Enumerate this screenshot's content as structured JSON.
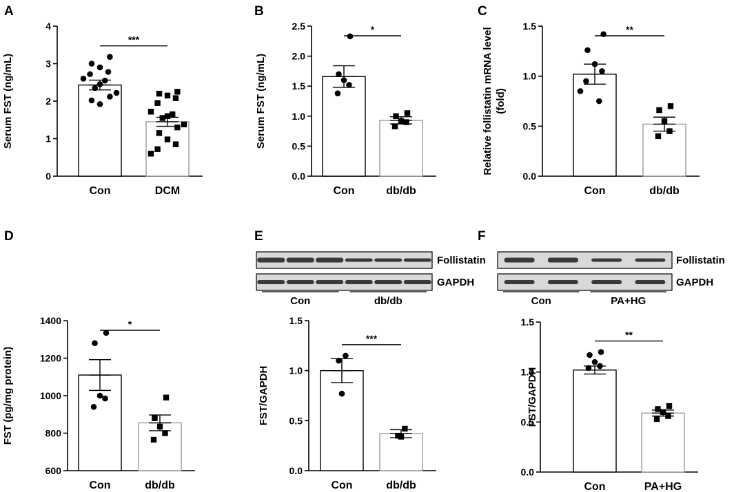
{
  "colors": {
    "ink": "#000000",
    "bar_con_edge": "#000000",
    "bar_trt_edge": "#9a9a9a",
    "band": "#3a3a3a",
    "blot_bg": "#d9d9d9"
  },
  "chart_data": [
    {
      "panel": "A",
      "type": "bar",
      "ylabel": "Serum FST (ng/mL)",
      "ylim": [
        0,
        4
      ],
      "yticks": [
        0,
        1,
        2,
        3,
        4
      ],
      "tick_decimals": 0,
      "categories": [
        "Con",
        "DCM"
      ],
      "means": [
        2.43,
        1.45
      ],
      "sem": [
        0.13,
        0.12
      ],
      "points": [
        [
          3.18,
          3.0,
          2.9,
          2.78,
          2.72,
          2.6,
          2.55,
          2.45,
          2.35,
          2.22,
          2.12,
          2.02,
          1.92
        ],
        [
          2.25,
          2.2,
          2.15,
          2.08,
          1.95,
          1.72,
          1.65,
          1.6,
          1.55,
          1.38,
          1.3,
          1.15,
          0.98,
          0.85,
          0.72,
          0.6
        ]
      ],
      "markers": [
        "circle",
        "square"
      ],
      "significance": "***"
    },
    {
      "panel": "B",
      "type": "bar",
      "ylabel": "Serum FST (ng/mL)",
      "ylim": [
        0,
        2.5
      ],
      "yticks": [
        0,
        0.5,
        1.0,
        1.5,
        2.0,
        2.5
      ],
      "tick_decimals": 1,
      "categories": [
        "Con",
        "db/db"
      ],
      "means": [
        1.66,
        0.93
      ],
      "sem": [
        0.18,
        0.06
      ],
      "points": [
        [
          2.33,
          1.7,
          1.6,
          1.52,
          1.38
        ],
        [
          1.05,
          1.0,
          0.92,
          0.9,
          0.83
        ]
      ],
      "markers": [
        "circle",
        "square"
      ],
      "significance": "*"
    },
    {
      "panel": "C",
      "type": "bar",
      "ylabel": "Relative follistatin mRNA level (fold)",
      "ylim": [
        0,
        1.5
      ],
      "yticks": [
        0,
        0.5,
        1.0,
        1.5
      ],
      "tick_decimals": 1,
      "categories": [
        "Con",
        "db/db"
      ],
      "means": [
        1.02,
        0.52
      ],
      "sem": [
        0.1,
        0.07
      ],
      "points": [
        [
          1.42,
          1.26,
          1.12,
          1.05,
          0.95,
          0.85,
          0.75
        ],
        [
          0.7,
          0.66,
          0.55,
          0.45,
          0.4
        ]
      ],
      "markers": [
        "circle",
        "square"
      ],
      "significance": "**"
    },
    {
      "panel": "D",
      "type": "bar",
      "ylabel": "FST (pg/mg protein)",
      "ylim": [
        600,
        1400
      ],
      "yticks": [
        600,
        800,
        1000,
        1200,
        1400
      ],
      "tick_decimals": 0,
      "categories": [
        "Con",
        "db/db"
      ],
      "means": [
        1110,
        855
      ],
      "sem": [
        82,
        42
      ],
      "points": [
        [
          1335,
          1280,
          1000,
          985,
          940
        ],
        [
          990,
          880,
          835,
          800,
          765
        ]
      ],
      "markers": [
        "circle",
        "square"
      ],
      "significance": "*"
    },
    {
      "panel": "E",
      "type": "bar",
      "ylabel": "FST/GAPDH",
      "ylim": [
        0,
        1.5
      ],
      "yticks": [
        0,
        0.5,
        1.0,
        1.5
      ],
      "tick_decimals": 1,
      "categories": [
        "Con",
        "db/db"
      ],
      "means": [
        1.0,
        0.37
      ],
      "sem": [
        0.12,
        0.04
      ],
      "points": [
        [
          1.15,
          1.1,
          0.77
        ],
        [
          0.42,
          0.35,
          0.34
        ]
      ],
      "markers": [
        "circle",
        "square"
      ],
      "significance": "***"
    },
    {
      "panel": "F",
      "type": "bar",
      "ylabel": "FST/GAPDH",
      "ylim": [
        0,
        1.5
      ],
      "yticks": [
        0,
        0.5,
        1.0,
        1.5
      ],
      "tick_decimals": 1,
      "categories": [
        "Con",
        "PA+HG"
      ],
      "means": [
        1.02,
        0.59
      ],
      "sem": [
        0.04,
        0.03
      ],
      "points": [
        [
          1.2,
          1.17,
          1.1,
          1.06,
          1.04
        ],
        [
          0.66,
          0.63,
          0.6,
          0.56,
          0.53
        ]
      ],
      "markers": [
        "circle",
        "square"
      ],
      "significance": "**"
    }
  ],
  "blots": [
    {
      "panel": "E",
      "bands": [
        "Follistatin",
        "GAPDH"
      ],
      "groups": [
        "Con",
        "db/db"
      ],
      "lanes": 6
    },
    {
      "panel": "F",
      "bands": [
        "Follistatin",
        "GAPDH"
      ],
      "groups": [
        "Con",
        "PA+HG"
      ],
      "lanes": 4
    }
  ]
}
